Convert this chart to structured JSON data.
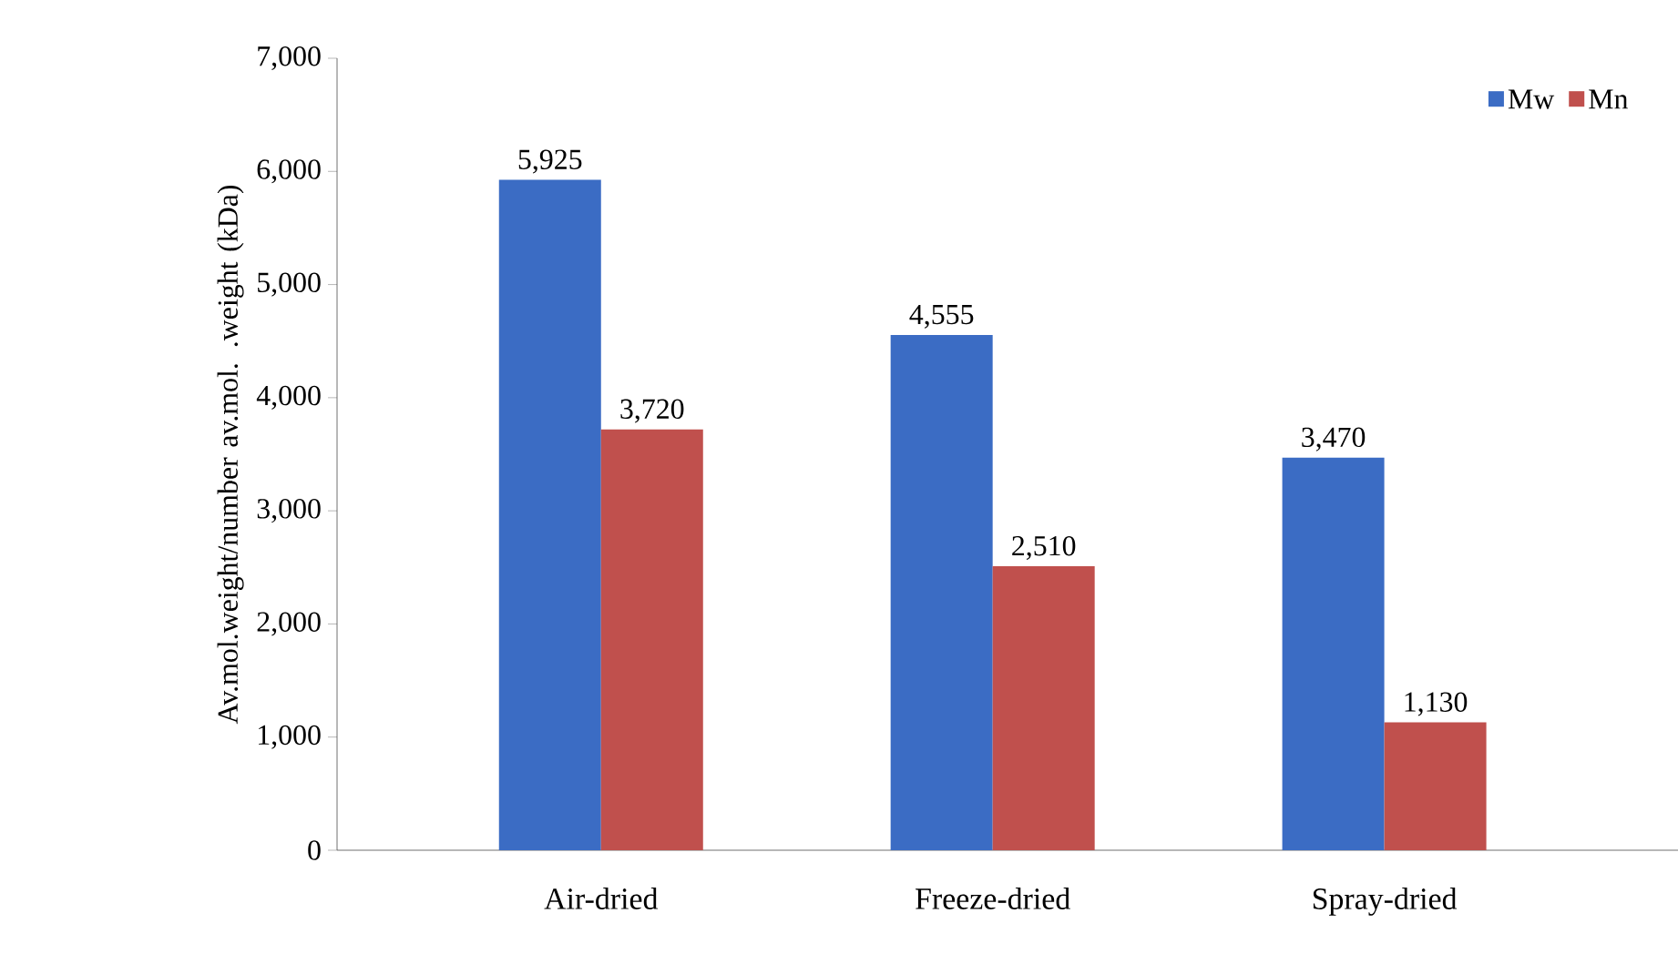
{
  "chart_data": {
    "type": "bar",
    "ylabel": "Av.mol.weight/number av.mol. .weight (kDa)",
    "categories": [
      "Air-dried",
      "Freeze-dried",
      "Spray-dried"
    ],
    "series": [
      {
        "name": "Mw",
        "color": "#3b6cc4",
        "values": [
          5925,
          4555,
          3470
        ],
        "value_labels": [
          "5,925",
          "4,555",
          "3,470"
        ]
      },
      {
        "name": "Mn",
        "color": "#c0504d",
        "values": [
          3720,
          2510,
          1130
        ],
        "value_labels": [
          "3,720",
          "2,510",
          "1,130"
        ]
      }
    ],
    "ylim": [
      0,
      7000
    ],
    "yticks": [
      {
        "value": 0,
        "label": "0"
      },
      {
        "value": 1000,
        "label": "1,000"
      },
      {
        "value": 2000,
        "label": "2,000"
      },
      {
        "value": 3000,
        "label": "3,000"
      },
      {
        "value": 4000,
        "label": "4,000"
      },
      {
        "value": 5000,
        "label": "5,000"
      },
      {
        "value": 6000,
        "label": "6,000"
      },
      {
        "value": 7000,
        "label": "7,000"
      }
    ],
    "legend": "top right",
    "grid": false
  }
}
